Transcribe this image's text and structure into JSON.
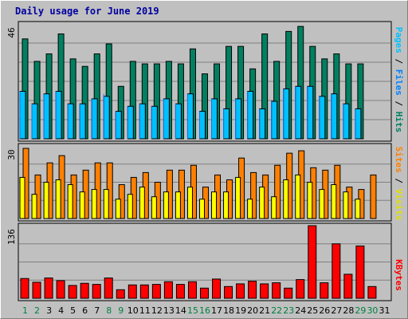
{
  "title": "Daily usage for June 2019",
  "colors": {
    "hits": "#008060",
    "files": "#00c0ff",
    "pages": "#0080ff",
    "visits": "#ff8000",
    "sites": "#ffff00",
    "kbytes": "#ff0000",
    "weekend_label": "#008040",
    "weekday_label": "#000000",
    "background": "#c0c0c0",
    "grid": "#808080"
  },
  "days": [
    "1",
    "2",
    "3",
    "4",
    "5",
    "6",
    "7",
    "8",
    "9",
    "10",
    "11",
    "12",
    "13",
    "14",
    "15",
    "16",
    "17",
    "18",
    "19",
    "20",
    "21",
    "22",
    "23",
    "24",
    "25",
    "26",
    "27",
    "28",
    "29",
    "30",
    "31"
  ],
  "weekend_days": [
    "1",
    "2",
    "8",
    "9",
    "15",
    "16",
    "22",
    "23",
    "29",
    "30"
  ],
  "chart_data": [
    {
      "type": "bar",
      "name": "hits-files-pages",
      "ymax_label": "46",
      "ylim": [
        0,
        46
      ],
      "ylabel_parts": [
        "Pages",
        "Files",
        "Hits"
      ],
      "series": [
        {
          "name": "Hits",
          "values": [
            40,
            31,
            34,
            42,
            32,
            29,
            34,
            38,
            21,
            31,
            30,
            30,
            31,
            30,
            36,
            26,
            30,
            37,
            37,
            28,
            42,
            31,
            43,
            45,
            37,
            32,
            34,
            30,
            30,
            0,
            0
          ]
        },
        {
          "name": "Files",
          "values": [
            19,
            14,
            18,
            19,
            14,
            14,
            16,
            17,
            11,
            13,
            14,
            13,
            16,
            14,
            18,
            11,
            16,
            12,
            16,
            19,
            12,
            15,
            20,
            21,
            21,
            17,
            18,
            14,
            12,
            0,
            0
          ]
        },
        {
          "name": "Pages",
          "values": [
            19,
            14,
            18,
            19,
            14,
            14,
            16,
            18,
            11,
            13,
            14,
            13,
            16,
            14,
            18,
            11,
            16,
            12,
            16,
            19,
            12,
            15,
            20,
            21,
            21,
            17,
            18,
            14,
            12,
            0,
            0
          ]
        }
      ]
    },
    {
      "type": "bar",
      "name": "visits-sites",
      "ymax_label": "30",
      "ylim": [
        0,
        30
      ],
      "ylabel_parts": [
        "Sites",
        "Visits"
      ],
      "series": [
        {
          "name": "Visits",
          "values": [
            29,
            18,
            23,
            26,
            18,
            20,
            23,
            23,
            14,
            17,
            19,
            15,
            20,
            20,
            22,
            13,
            18,
            16,
            25,
            19,
            18,
            22,
            27,
            28,
            21,
            20,
            22,
            13,
            12,
            18,
            0
          ]
        },
        {
          "name": "Sites",
          "values": [
            17,
            10,
            15,
            16,
            14,
            11,
            12,
            12,
            8,
            10,
            13,
            9,
            11,
            11,
            13,
            8,
            11,
            11,
            17,
            8,
            13,
            9,
            16,
            18,
            15,
            12,
            14,
            11,
            8,
            0,
            0
          ]
        }
      ]
    },
    {
      "type": "bar",
      "name": "kbytes",
      "ymax_label": "136",
      "ylim": [
        0,
        136
      ],
      "ylabel_parts": [
        "KBytes"
      ],
      "series": [
        {
          "name": "KBytes",
          "values": [
            37,
            30,
            38,
            33,
            24,
            28,
            26,
            38,
            16,
            25,
            25,
            26,
            31,
            26,
            31,
            19,
            36,
            22,
            27,
            32,
            27,
            29,
            19,
            35,
            136,
            29,
            102,
            45,
            98,
            22,
            0
          ]
        }
      ]
    }
  ]
}
